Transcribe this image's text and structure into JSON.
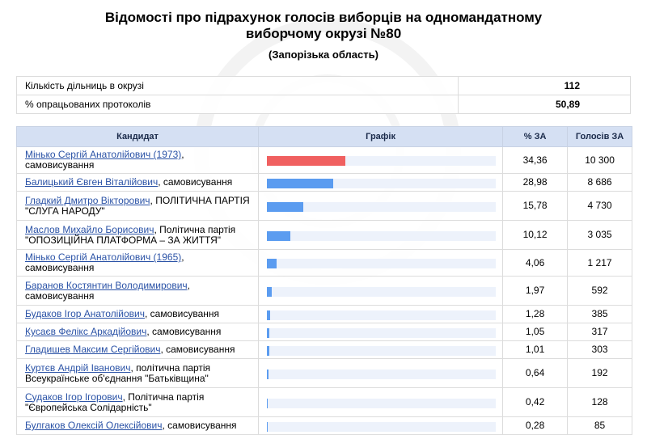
{
  "header": {
    "title": "Відомості про підрахунок голосів виборців на одномандатному виборчому окрузі №80",
    "subtitle": "(Запорізька область)"
  },
  "summary": [
    {
      "label": "Кількість дільниць в окрузі",
      "value": "112"
    },
    {
      "label": "% опрацьованих протоколів",
      "value": "50,89"
    }
  ],
  "table": {
    "headers": [
      "Кандидат",
      "Графік",
      "% ЗА",
      "Голосів ЗА"
    ],
    "rows": [
      {
        "name": "Мінько Сергій Анатолійович (1973)",
        "affiliation": ", самовисування",
        "percent": "34,36",
        "votes": "10 300"
      },
      {
        "name": "Балицький Євген Віталійович",
        "affiliation": ", самовисування",
        "percent": "28,98",
        "votes": "8 686"
      },
      {
        "name": "Гладкий Дмитро Вікторович",
        "affiliation": ", ПОЛІТИЧНА ПАРТІЯ \"СЛУГА НАРОДУ\"",
        "percent": "15,78",
        "votes": "4 730"
      },
      {
        "name": "Маслов Михайло Борисович",
        "affiliation": ", Політична партія \"ОПОЗИЦІЙНА ПЛАТФОРМА – ЗА ЖИТТЯ\"",
        "percent": "10,12",
        "votes": "3 035"
      },
      {
        "name": "Мінько Сергій Анатолійович (1965)",
        "affiliation": ", самовисування",
        "percent": "4,06",
        "votes": "1 217"
      },
      {
        "name": "Баранов Костянтин Володимирович",
        "affiliation": ", самовисування",
        "percent": "1,97",
        "votes": "592"
      },
      {
        "name": "Будаков Ігор Анатолійович",
        "affiliation": ", самовисування",
        "percent": "1,28",
        "votes": "385"
      },
      {
        "name": "Кусаєв Фелікс Аркадійович",
        "affiliation": ", самовисування",
        "percent": "1,05",
        "votes": "317"
      },
      {
        "name": "Гладишев Максим Сергійович",
        "affiliation": ", самовисування",
        "percent": "1,01",
        "votes": "303"
      },
      {
        "name": "Куртєв Андрій Іванович",
        "affiliation": ", політична партія Всеукраїнське об'єднання \"Батьківщина\"",
        "percent": "0,64",
        "votes": "192"
      },
      {
        "name": "Судаков Ігор Ігорович",
        "affiliation": ", Політична партія \"Європейська Солідарність\"",
        "percent": "0,42",
        "votes": "128"
      },
      {
        "name": "Булгаков Олексій Олексійович",
        "affiliation": ", самовисування",
        "percent": "0,28",
        "votes": "85"
      }
    ]
  },
  "colors": {
    "top_bar": "#f06060",
    "bar": "#5b9cf0",
    "track": "#edf2fb",
    "header_bg": "#d5e0f3",
    "link": "#2a52a6"
  }
}
